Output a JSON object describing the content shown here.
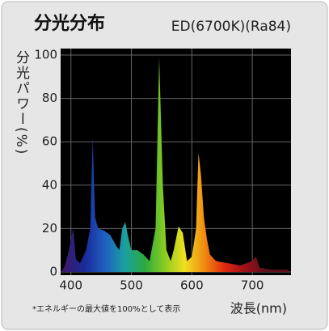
{
  "chart_data": {
    "type": "area",
    "title": "分光分布",
    "subtitle": "ED(6700K)(Ra84)",
    "ylabel": "分光パワー(%)",
    "xlabel": "波長(nm)",
    "note": "*エネルギーの最大値を100%として表示",
    "x": [
      385,
      390,
      395,
      400,
      404,
      408,
      415,
      425,
      432,
      436,
      440,
      445,
      455,
      465,
      475,
      480,
      485,
      490,
      494,
      500,
      510,
      520,
      530,
      540,
      546,
      552,
      558,
      565,
      570,
      578,
      585,
      592,
      600,
      607,
      611,
      615,
      620,
      625,
      630,
      640,
      660,
      680,
      700,
      706,
      712,
      730,
      760
    ],
    "values": [
      0,
      3,
      8,
      15,
      20,
      6,
      4,
      10,
      20,
      62,
      25,
      20,
      19,
      17,
      12,
      10,
      20,
      23,
      17,
      10,
      10,
      8,
      5,
      20,
      99,
      40,
      10,
      5,
      10,
      21,
      18,
      5,
      7,
      20,
      55,
      45,
      25,
      15,
      8,
      5,
      4,
      3,
      5,
      7,
      2,
      1,
      1
    ],
    "xlim": [
      383,
      764
    ],
    "ylim": [
      -1.5,
      103
    ],
    "xticks": [
      400,
      500,
      600,
      700
    ],
    "yticks": [
      0,
      20,
      40,
      60,
      80,
      100
    ],
    "grid": true,
    "colors": [
      "#3a1a6a",
      "#1a2a9a",
      "#1e5fc0",
      "#1aa0a0",
      "#2aaa40",
      "#8acc20",
      "#f0e020",
      "#f08a10",
      "#e02a10",
      "#a0101a",
      "#60101a"
    ]
  }
}
